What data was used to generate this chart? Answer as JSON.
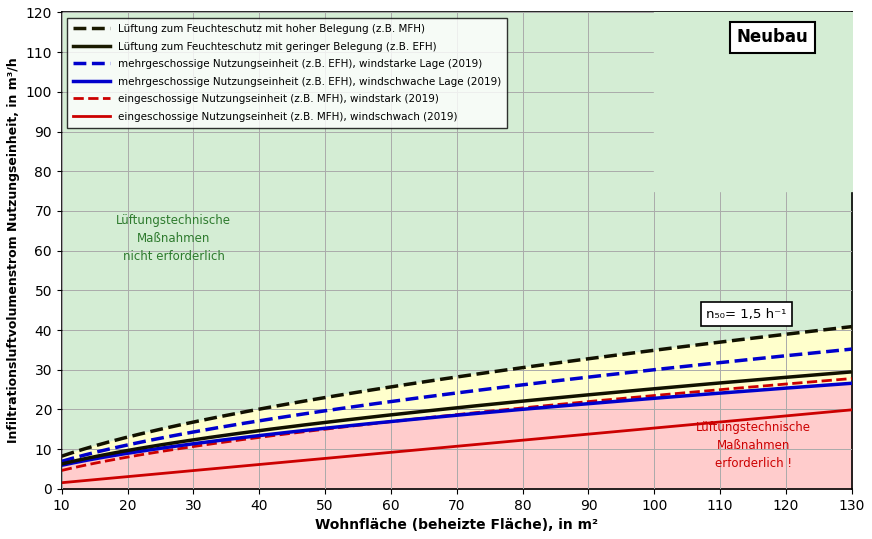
{
  "xlabel": "Wohnfläche (beheizte Fläche), in m²",
  "ylabel": "Infiltrationsluftvolumenstrom Nutzungseinheit, in m³/h",
  "xlim": [
    10,
    130
  ],
  "ylim": [
    0,
    120
  ],
  "xticks": [
    10,
    20,
    30,
    40,
    50,
    60,
    70,
    80,
    90,
    100,
    110,
    120,
    130
  ],
  "yticks": [
    0,
    10,
    20,
    30,
    40,
    50,
    60,
    70,
    80,
    90,
    100,
    110,
    120
  ],
  "neubau_box": "Neubau",
  "n50_label": "n₅₀= 1,5 h⁻¹",
  "annotation_green": "Lüftungstechnische\nMaßnahmen\nnicht erforderlich",
  "annotation_red": "Lüftungstechnische\nMaßnahmen\nerforderlich !",
  "legend_entries": [
    {
      "label": "Lüftung zum Feuchteschutz mit hoher Belegung (z.B. MFH)",
      "color": "#1a1a00",
      "linestyle": "dashed",
      "linewidth": 2.5
    },
    {
      "label": "Lüftung zum Feuchteschutz mit geringer Belegung (z.B. EFH)",
      "color": "#1a1a00",
      "linestyle": "solid",
      "linewidth": 2.5
    },
    {
      "label": "mehrgeschossige Nutzungseinheit (z.B. EFH), windstarke Lage (2019)",
      "color": "#0000cc",
      "linestyle": "dashed",
      "linewidth": 2.5
    },
    {
      "label": "mehrgeschossige Nutzungseinheit (z.B. EFH), windschwache Lage (2019)",
      "color": "#0000cc",
      "linestyle": "solid",
      "linewidth": 2.5
    },
    {
      "label": "eingeschossige Nutzungseinheit (z.B. MFH), windstark (2019)",
      "color": "#cc0000",
      "linestyle": "dashed",
      "linewidth": 2.0
    },
    {
      "label": "eingeschossige Nutzungseinheit (z.B. MFH), windschwach (2019)",
      "color": "#cc0000",
      "linestyle": "solid",
      "linewidth": 2.0
    }
  ],
  "green_region_color": "#d4edd4",
  "yellow_region_color": "#ffffcc",
  "red_region_color": "#ffcccc",
  "neubau_green_color": "#d4edd4",
  "curve_params": {
    "feuchtz_high": {
      "a": 3.35,
      "b": 0.042,
      "c": -2.8
    },
    "feuchtz_low": {
      "a": 2.35,
      "b": 0.032,
      "c": -1.5
    },
    "mehr_windstark": {
      "a": 2.85,
      "b": 0.04,
      "c": -2.5
    },
    "mehr_windschwach": {
      "a": 2.1,
      "b": 0.028,
      "c": -1.0
    },
    "ein_windstark": {
      "a": 2.3,
      "b": 0.035,
      "c": -3.0
    },
    "ein_windschwach": {
      "a": 0.0,
      "b": 0.153,
      "c": 0.0
    }
  }
}
